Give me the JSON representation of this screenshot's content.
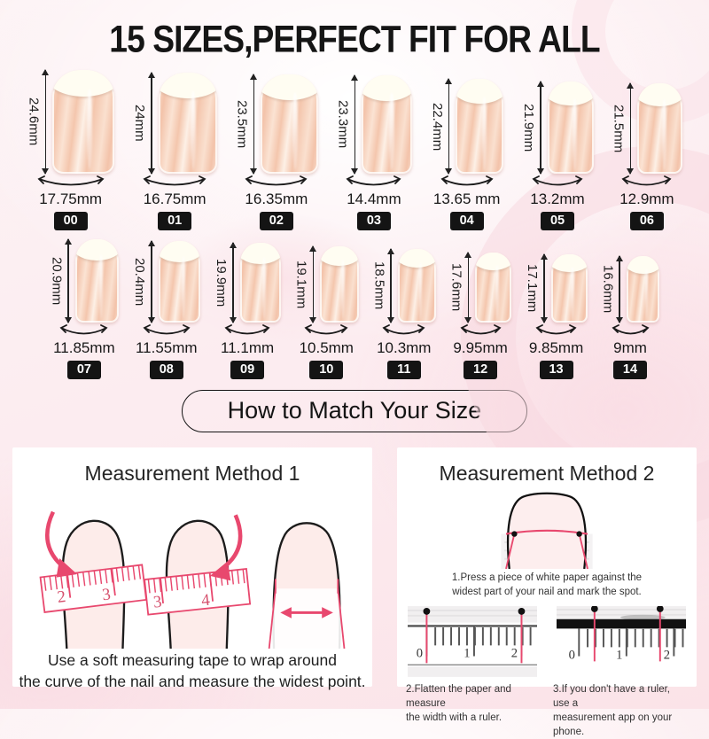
{
  "title": "15 SIZES,PERFECT FIT FOR ALL",
  "rows": [
    {
      "items": [
        {
          "id": "00",
          "height_mm": "24.6mm",
          "width_mm": "17.75mm"
        },
        {
          "id": "01",
          "height_mm": "24mm",
          "width_mm": "16.75mm"
        },
        {
          "id": "02",
          "height_mm": "23.5mm",
          "width_mm": "16.35mm"
        },
        {
          "id": "03",
          "height_mm": "23.3mm",
          "width_mm": "14.4mm"
        },
        {
          "id": "04",
          "height_mm": "22.4mm",
          "width_mm": "13.65 mm"
        },
        {
          "id": "05",
          "height_mm": "21.9mm",
          "width_mm": "13.2mm"
        },
        {
          "id": "06",
          "height_mm": "21.5mm",
          "width_mm": "12.9mm"
        }
      ]
    },
    {
      "items": [
        {
          "id": "07",
          "height_mm": "20.9mm",
          "width_mm": "11.85mm"
        },
        {
          "id": "08",
          "height_mm": "20.4mm",
          "width_mm": "11.55mm"
        },
        {
          "id": "09",
          "height_mm": "19.9mm",
          "width_mm": "11.1mm"
        },
        {
          "id": "10",
          "height_mm": "19.1mm",
          "width_mm": "10.5mm"
        },
        {
          "id": "11",
          "height_mm": "18.5mm",
          "width_mm": "10.3mm"
        },
        {
          "id": "12",
          "height_mm": "17.6mm",
          "width_mm": "9.95mm"
        },
        {
          "id": "13",
          "height_mm": "17.1mm",
          "width_mm": "9.85mm"
        },
        {
          "id": "14",
          "height_mm": "16.6mm",
          "width_mm": "9mm"
        }
      ]
    }
  ],
  "match_button": {
    "label": "How to Match Your Size"
  },
  "method1": {
    "title": "Measurement Method 1",
    "caption": "Use a soft measuring tape to wrap around\nthe curve of the nail and measure the widest point.",
    "tape1_numbers": [
      "2",
      "3"
    ],
    "tape2_numbers": [
      "3",
      "4"
    ]
  },
  "method2": {
    "title": "Measurement Method 2",
    "step1": "1.Press a piece of white paper against the\nwidest part of your nail and mark the spot.",
    "step2": "2.Flatten the paper and measure\nthe width with a ruler.",
    "step3": "3.If you don't have a ruler, use a\nmeasurement app on your phone.",
    "ruler_numbers": [
      "0",
      "1",
      "2"
    ]
  },
  "colors": {
    "ink": "#1a1a1a",
    "accent_pink": "#e8486e",
    "badge_bg": "#141414",
    "card_bg": "#ffffff",
    "nail_tip": "#fffdf2",
    "nail_body": "#f5c9b2",
    "background_pink": "#fbe3e8"
  }
}
